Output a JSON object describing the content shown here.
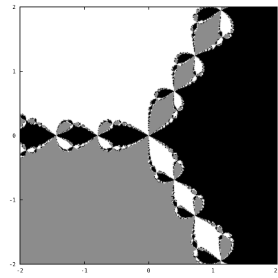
{
  "chart_data": {
    "type": "heatmap",
    "title": "",
    "xlabel": "",
    "ylabel": "",
    "xlim": [
      -2,
      2
    ],
    "ylim": [
      -2,
      2
    ],
    "grid": false,
    "legend": "none",
    "x_ticks": [
      {
        "value": -2,
        "label": "-2"
      },
      {
        "value": -1,
        "label": "-1"
      },
      {
        "value": 0,
        "label": "0"
      },
      {
        "value": 1,
        "label": "1"
      },
      {
        "value": 2,
        "label": "2"
      }
    ],
    "y_ticks": [
      {
        "value": -2,
        "label": "-2"
      },
      {
        "value": -1,
        "label": "-1"
      },
      {
        "value": 0,
        "label": "0"
      },
      {
        "value": 1,
        "label": "1"
      },
      {
        "value": 2,
        "label": "2"
      }
    ],
    "roots": [
      {
        "re": 1.0,
        "im": 0.0,
        "color": "#000000"
      },
      {
        "re": -0.5,
        "im": 0.866,
        "color": "#ffffff"
      },
      {
        "re": -0.5,
        "im": -0.866,
        "color": "#8c8c8c"
      }
    ],
    "colors": {
      "frame": "#000000",
      "background": "#ffffff"
    }
  }
}
